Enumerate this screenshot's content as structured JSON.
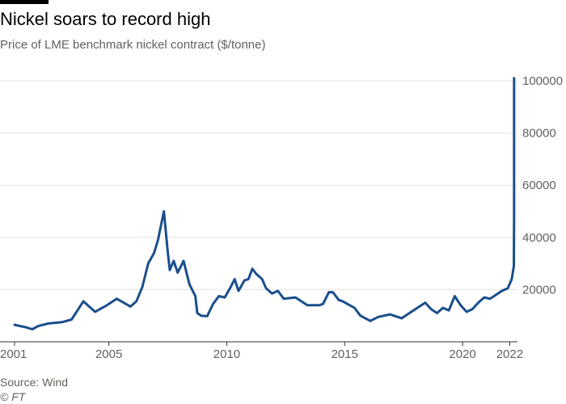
{
  "header": {
    "title": "Nickel soars to record high",
    "subtitle": "Price of LME benchmark nickel contract ($/tonne)"
  },
  "footer": {
    "source": "Source: Wind",
    "credit": "© FT"
  },
  "colors": {
    "line": "#1a4f8c",
    "grid": "#e6e3df",
    "axis": "#33302e",
    "text": "#66605c",
    "title": "#000000"
  },
  "chart_data": {
    "type": "line",
    "title": "Nickel soars to record high",
    "subtitle": "Price of LME benchmark nickel contract ($/tonne)",
    "xlabel": "",
    "ylabel": "",
    "xlim": [
      "2001-01-01",
      "2022-03-10"
    ],
    "ylim": [
      0,
      100000
    ],
    "grid": true,
    "y_axis_position": "right",
    "x_ticks": [
      "2001",
      "2005",
      "2010",
      "2015",
      "2020",
      "2022"
    ],
    "y_ticks": [
      20000,
      40000,
      60000,
      80000,
      100000
    ],
    "series": [
      {
        "x": [
          "2001-01",
          "2001-04",
          "2001-07",
          "2001-10",
          "2002-01",
          "2002-06",
          "2003-01",
          "2003-06",
          "2003-12",
          "2004-03",
          "2004-06",
          "2004-12",
          "2005-05",
          "2005-12",
          "2006-03",
          "2006-06",
          "2006-09",
          "2006-12",
          "2007-02",
          "2007-05",
          "2007-07",
          "2007-08",
          "2007-10",
          "2007-12",
          "2008-03",
          "2008-06",
          "2008-09",
          "2008-10",
          "2008-12",
          "2009-03",
          "2009-06",
          "2009-09",
          "2009-12",
          "2010-03",
          "2010-05",
          "2010-07",
          "2010-10",
          "2010-12",
          "2011-02",
          "2011-04",
          "2011-07",
          "2011-09",
          "2011-12",
          "2012-03",
          "2012-06",
          "2012-12",
          "2013-06",
          "2013-12",
          "2014-02",
          "2014-05",
          "2014-07",
          "2014-10",
          "2014-12",
          "2015-06",
          "2015-09",
          "2015-12",
          "2016-02",
          "2016-06",
          "2016-12",
          "2017-06",
          "2017-12",
          "2018-06",
          "2018-09",
          "2018-12",
          "2019-03",
          "2019-06",
          "2019-09",
          "2019-12",
          "2020-03",
          "2020-06",
          "2020-09",
          "2020-12",
          "2021-03",
          "2021-06",
          "2021-09",
          "2021-12",
          "2022-02",
          "2022-03-04",
          "2022-03-07",
          "2022-03-08"
        ],
        "values": [
          6500,
          6000,
          5500,
          4800,
          6000,
          7000,
          7500,
          8500,
          15500,
          13500,
          11500,
          14000,
          16500,
          13500,
          15500,
          21000,
          30000,
          34000,
          39000,
          50000,
          34000,
          27500,
          31000,
          26500,
          31000,
          22000,
          17500,
          11000,
          10000,
          9800,
          14500,
          17500,
          17000,
          21000,
          24000,
          19500,
          23500,
          24000,
          28000,
          26000,
          24000,
          20500,
          18500,
          19500,
          16500,
          17000,
          14000,
          14000,
          14500,
          19000,
          19000,
          16000,
          15500,
          13000,
          10000,
          8800,
          8000,
          9500,
          10500,
          9000,
          12000,
          15000,
          12500,
          11000,
          13000,
          12000,
          17500,
          14000,
          11500,
          12500,
          15000,
          17000,
          16500,
          18000,
          19500,
          20500,
          24000,
          29000,
          48000,
          101000
        ]
      }
    ]
  }
}
